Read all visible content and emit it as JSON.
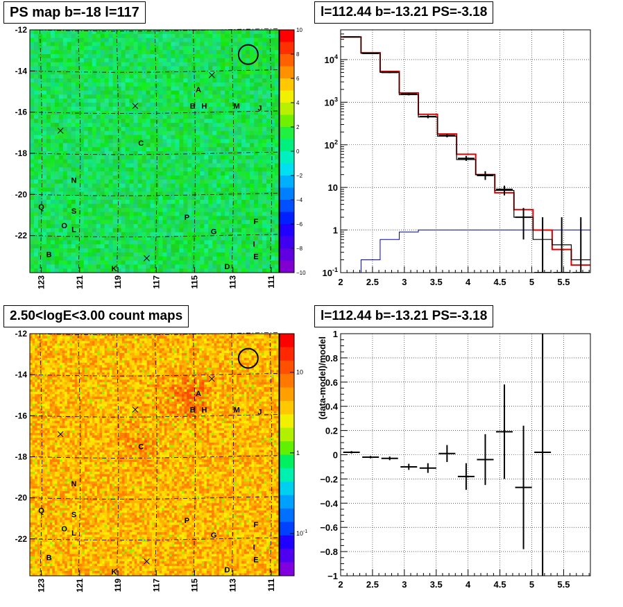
{
  "titles": {
    "psmap": "PS map b=-18 l=117",
    "spectrum": "l=112.44 b=-13.21 PS=-3.18",
    "countmap": "2.50<logE<3.00 count maps",
    "residual": "l=112.44 b=-13.21 PS=-3.18"
  },
  "colors": {
    "data": "#000000",
    "model": "#e00000",
    "background": "#0000c0"
  },
  "chart_data": [
    {
      "type": "heatmap",
      "title": "PS map b=-18 l=117",
      "x_ticks": [
        "123",
        "121",
        "119",
        "117",
        "115",
        "113",
        "111"
      ],
      "x_tick_values": [
        123,
        121,
        119,
        117,
        115,
        113,
        111
      ],
      "y_ticks": [
        "-12",
        "-14",
        "-16",
        "-18",
        "-20",
        "-22"
      ],
      "y_tick_values": [
        -12,
        -14,
        -16,
        -18,
        -20,
        -22
      ],
      "xlim": [
        123.6,
        110.6
      ],
      "ylim": [
        -23.8,
        -12
      ],
      "colorbar_ticks": [
        "10",
        "8",
        "6",
        "4",
        "2",
        "0",
        "−2",
        "−4",
        "−6",
        "−8",
        "−10"
      ],
      "colorbar_range": [
        -10,
        10
      ],
      "dominant_value": 0.5,
      "circle": {
        "l": 112.2,
        "b": -13.2
      },
      "crosses": [
        {
          "l": 114.1,
          "b": -14.2
        },
        {
          "l": 118.1,
          "b": -15.7
        },
        {
          "l": 122.0,
          "b": -16.9
        },
        {
          "l": 117.5,
          "b": -23.1
        }
      ],
      "sources": [
        {
          "label": "A",
          "l": 114.8,
          "b": -14.9
        },
        {
          "label": "B",
          "l": 115.1,
          "b": -15.7
        },
        {
          "label": "H",
          "l": 114.5,
          "b": -15.7
        },
        {
          "label": "M",
          "l": 112.8,
          "b": -15.7
        },
        {
          "label": "J",
          "l": 111.6,
          "b": -15.8
        },
        {
          "label": "C",
          "l": 117.8,
          "b": -17.5
        },
        {
          "label": "N",
          "l": 121.3,
          "b": -19.3
        },
        {
          "label": "Q",
          "l": 123.0,
          "b": -20.6
        },
        {
          "label": "S",
          "l": 121.3,
          "b": -20.8
        },
        {
          "label": "O",
          "l": 121.8,
          "b": -21.5
        },
        {
          "label": "L",
          "l": 121.3,
          "b": -21.7
        },
        {
          "label": "P",
          "l": 115.4,
          "b": -21.1
        },
        {
          "label": "G",
          "l": 114.0,
          "b": -21.8
        },
        {
          "label": "F",
          "l": 111.8,
          "b": -21.3
        },
        {
          "label": "I",
          "l": 111.9,
          "b": -22.4
        },
        {
          "label": "B",
          "l": 122.6,
          "b": -22.9
        },
        {
          "label": "E",
          "l": 111.8,
          "b": -23.0
        },
        {
          "label": "K",
          "l": 119.2,
          "b": -23.6
        },
        {
          "label": "D",
          "l": 113.3,
          "b": -23.5
        }
      ]
    },
    {
      "type": "line",
      "title": "l=112.44 b=-13.21 PS=-3.18",
      "xlim": [
        2,
        5.92
      ],
      "ylim": [
        0.1,
        50000
      ],
      "yscale": "log",
      "x_ticks": [
        "2",
        "2.5",
        "3",
        "3.5",
        "4",
        "4.5",
        "5",
        "5.5"
      ],
      "x_tick_values": [
        2,
        2.5,
        3,
        3.5,
        4,
        4.5,
        5,
        5.5
      ],
      "y_ticks": [
        "10^-1",
        "1",
        "10",
        "10^2",
        "10^3",
        "10^4"
      ],
      "y_tick_values": [
        0.1,
        1,
        10,
        100,
        1000,
        10000
      ],
      "grid": true,
      "bin_edges": [
        2.0,
        2.32,
        2.62,
        2.92,
        3.22,
        3.52,
        3.82,
        4.12,
        4.42,
        4.72,
        5.02,
        5.32,
        5.62,
        5.92
      ],
      "series": [
        {
          "values": [
            34000,
            14000,
            5000,
            1500,
            450,
            160,
            45,
            20,
            8.5,
            2.0,
            0.6,
            0.45,
            0.2
          ]
        },
        {
          "values": [
            34000,
            14500,
            5300,
            1650,
            520,
            180,
            60,
            20,
            7.5,
            3.0,
            1.0,
            0.35,
            0.15
          ]
        },
        {
          "values": [
            0.1,
            0.2,
            0.6,
            0.9,
            1.0,
            1.0,
            1.0,
            1.0,
            1.0,
            1.0,
            1.0,
            1.0,
            1.0
          ]
        }
      ],
      "data_points": [
        {
          "x": 2.17,
          "y": 34000,
          "lo": 33000,
          "hi": 35000
        },
        {
          "x": 2.47,
          "y": 14000,
          "lo": 13500,
          "hi": 14500
        },
        {
          "x": 2.77,
          "y": 5000,
          "lo": 4800,
          "hi": 5200
        },
        {
          "x": 3.07,
          "y": 1550,
          "lo": 1450,
          "hi": 1650
        },
        {
          "x": 3.37,
          "y": 460,
          "lo": 420,
          "hi": 500
        },
        {
          "x": 3.67,
          "y": 165,
          "lo": 150,
          "hi": 180
        },
        {
          "x": 3.97,
          "y": 48,
          "lo": 42,
          "hi": 55
        },
        {
          "x": 4.27,
          "y": 19,
          "lo": 15,
          "hi": 24
        },
        {
          "x": 4.57,
          "y": 9,
          "lo": 6.5,
          "hi": 11
        },
        {
          "x": 4.87,
          "y": 2.0,
          "lo": 0.6,
          "hi": 3.3
        },
        {
          "x": 5.17,
          "y": 0.1,
          "lo": 0.1,
          "hi": 2.0
        },
        {
          "x": 5.47,
          "y": 0.1,
          "lo": 0.1,
          "hi": 2.0
        },
        {
          "x": 5.77,
          "y": 0.1,
          "lo": 0.1,
          "hi": 2.0
        }
      ]
    },
    {
      "type": "heatmap",
      "title": "2.50<logE<3.00 count maps",
      "x_ticks": [
        "123",
        "121",
        "119",
        "117",
        "115",
        "113",
        "111"
      ],
      "x_tick_values": [
        123,
        121,
        119,
        117,
        115,
        113,
        111
      ],
      "y_ticks": [
        "-12",
        "-14",
        "-16",
        "-18",
        "-20",
        "-22"
      ],
      "y_tick_values": [
        -12,
        -14,
        -16,
        -18,
        -20,
        -22
      ],
      "xlim": [
        123.6,
        110.6
      ],
      "ylim": [
        -23.8,
        -12
      ],
      "zscale": "log",
      "colorbar_ticks": [
        "10",
        "1",
        "10^-1"
      ],
      "colorbar_range": [
        0.03,
        30
      ]
    },
    {
      "type": "scatter",
      "title": "l=112.44 b=-13.21 PS=-3.18",
      "ylabel": "(data-model)/model",
      "xlim": [
        2,
        5.92
      ],
      "ylim": [
        -1,
        1
      ],
      "x_ticks": [
        "2",
        "2.5",
        "3",
        "3.5",
        "4",
        "4.5",
        "5",
        "5.5"
      ],
      "x_tick_values": [
        2,
        2.5,
        3,
        3.5,
        4,
        4.5,
        5,
        5.5
      ],
      "y_ticks": [
        "−1",
        "−0.8",
        "−0.6",
        "−0.4",
        "−0.2",
        "0",
        "0.2",
        "0.4",
        "0.6",
        "0.8",
        "1"
      ],
      "y_tick_values": [
        -1,
        -0.8,
        -0.6,
        -0.4,
        -0.2,
        0,
        0.2,
        0.4,
        0.6,
        0.8,
        1
      ],
      "grid": true,
      "points": [
        {
          "x": 2.17,
          "y": 0.02,
          "err": 0.01
        },
        {
          "x": 2.47,
          "y": -0.02,
          "err": 0.01
        },
        {
          "x": 2.77,
          "y": -0.03,
          "err": 0.015
        },
        {
          "x": 3.07,
          "y": -0.1,
          "err": 0.025
        },
        {
          "x": 3.37,
          "y": -0.11,
          "err": 0.04
        },
        {
          "x": 3.67,
          "y": 0.01,
          "err": 0.07
        },
        {
          "x": 3.97,
          "y": -0.18,
          "err": 0.11
        },
        {
          "x": 4.27,
          "y": -0.04,
          "err": 0.21
        },
        {
          "x": 4.57,
          "y": 0.19,
          "err": 0.39
        },
        {
          "x": 4.87,
          "y": -0.27,
          "err": 0.51
        },
        {
          "x": 5.17,
          "y": 0.02,
          "err": 1.2
        }
      ]
    }
  ]
}
